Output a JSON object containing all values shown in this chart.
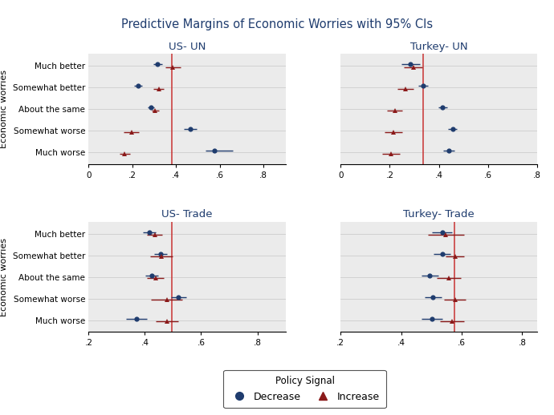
{
  "title": "Predictive Margins of Economic Worries with 95% CIs",
  "title_color": "#1F3C6E",
  "categories": [
    "Much better",
    "Somewhat better",
    "About the same",
    "Somewhat worse",
    "Much worse"
  ],
  "subplots": [
    {
      "title": "US- UN",
      "xlim": [
        0,
        0.9
      ],
      "xticks": [
        0,
        0.2,
        0.4,
        0.6,
        0.8
      ],
      "xticklabels": [
        "0",
        ".2",
        ".4",
        ".6",
        ".8"
      ],
      "vline": 0.38,
      "decrease": {
        "values": [
          0.315,
          0.225,
          0.285,
          0.465,
          0.575
        ],
        "ci_low": [
          0.295,
          0.207,
          0.27,
          0.435,
          0.535
        ],
        "ci_high": [
          0.335,
          0.243,
          0.3,
          0.495,
          0.66
        ]
      },
      "increase": {
        "values": [
          0.385,
          0.32,
          0.305,
          0.195,
          0.165
        ],
        "ci_low": [
          0.35,
          0.297,
          0.287,
          0.16,
          0.14
        ],
        "ci_high": [
          0.42,
          0.343,
          0.323,
          0.23,
          0.19
        ]
      }
    },
    {
      "title": "Turkey- UN",
      "xlim": [
        0,
        0.8
      ],
      "xticks": [
        0,
        0.2,
        0.4,
        0.6,
        0.8
      ],
      "xticklabels": [
        "0",
        ".2",
        ".4",
        ".6",
        ".8"
      ],
      "vline": 0.335,
      "decrease": {
        "values": [
          0.285,
          0.335,
          0.415,
          0.455,
          0.44
        ],
        "ci_low": [
          0.248,
          0.315,
          0.398,
          0.437,
          0.418
        ],
        "ci_high": [
          0.322,
          0.355,
          0.432,
          0.473,
          0.462
        ]
      },
      "increase": {
        "values": [
          0.295,
          0.265,
          0.22,
          0.215,
          0.205
        ],
        "ci_low": [
          0.257,
          0.232,
          0.188,
          0.178,
          0.168
        ],
        "ci_high": [
          0.333,
          0.298,
          0.252,
          0.252,
          0.242
        ]
      }
    },
    {
      "title": "US- Trade",
      "xlim": [
        0.2,
        0.9
      ],
      "xticks": [
        0.2,
        0.4,
        0.6,
        0.8
      ],
      "xticklabels": [
        ".2",
        ".4",
        ".6",
        ".8"
      ],
      "vline": 0.495,
      "decrease": {
        "values": [
          0.415,
          0.455,
          0.425,
          0.52,
          0.37
        ],
        "ci_low": [
          0.392,
          0.432,
          0.402,
          0.492,
          0.332
        ],
        "ci_high": [
          0.438,
          0.478,
          0.448,
          0.548,
          0.408
        ]
      },
      "increase": {
        "values": [
          0.435,
          0.458,
          0.438,
          0.478,
          0.478
        ],
        "ci_low": [
          0.408,
          0.418,
          0.408,
          0.422,
          0.438
        ],
        "ci_high": [
          0.462,
          0.498,
          0.468,
          0.534,
          0.518
        ]
      }
    },
    {
      "title": "Turkey- Trade",
      "xlim": [
        0.2,
        0.85
      ],
      "xticks": [
        0.2,
        0.4,
        0.6,
        0.8
      ],
      "xticklabels": [
        ".2",
        ".4",
        ".6",
        ".8"
      ],
      "vline": 0.575,
      "decrease": {
        "values": [
          0.535,
          0.535,
          0.495,
          0.505,
          0.502
        ],
        "ci_low": [
          0.502,
          0.507,
          0.467,
          0.477,
          0.467
        ],
        "ci_high": [
          0.568,
          0.563,
          0.523,
          0.533,
          0.537
        ]
      },
      "increase": {
        "values": [
          0.548,
          0.578,
          0.558,
          0.578,
          0.568
        ],
        "ci_low": [
          0.488,
          0.548,
          0.518,
          0.542,
          0.528
        ],
        "ci_high": [
          0.608,
          0.608,
          0.598,
          0.614,
          0.608
        ]
      }
    }
  ],
  "decrease_color": "#1F3C6E",
  "increase_color": "#8B1A1A",
  "ylabel": "Economic worries",
  "legend_label": "Policy Signal",
  "fig_width": 6.9,
  "fig_height": 5.18,
  "background_color": "#ebebeb"
}
